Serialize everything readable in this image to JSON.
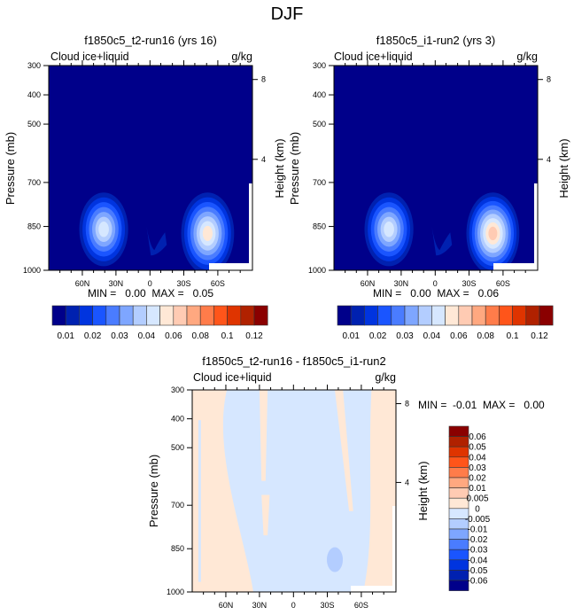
{
  "main_title": "DJF",
  "colormap": [
    "#00008a",
    "#0021b0",
    "#0034df",
    "#1a55ff",
    "#4a7cff",
    "#7ea6ff",
    "#b3cdff",
    "#d6e7ff",
    "#ffe8d6",
    "#ffcbb3",
    "#ffa880",
    "#ff7c4a",
    "#ff551a",
    "#df3400",
    "#b02100",
    "#8a0000"
  ],
  "chart_data": [
    {
      "type": "heatmap",
      "title": "f1850c5_t2-run16 (yrs 16)",
      "left_label": "Cloud ice+liquid",
      "right_label": "g/kg",
      "ylabel": "Pressure (mb)",
      "ylabel_right": "Height (km)",
      "xticks": [
        "60N",
        "30N",
        "0",
        "30S",
        "60S"
      ],
      "yticks": [
        "300",
        "400",
        "500",
        "700",
        "850",
        "1000"
      ],
      "yticks_right": [
        "8",
        "4"
      ],
      "ylim": [
        1000,
        300
      ],
      "stats": "MIN =   0.00  MAX =   0.05",
      "min": 0.0,
      "max": 0.05,
      "colorbar_labels": [
        "0.01",
        "0.02",
        "0.03",
        "0.04",
        "0.06",
        "0.08",
        "0.1",
        "0.12"
      ],
      "colorbar_orientation": "horizontal",
      "features": [
        {
          "name": "NH max near 40N at 850mb",
          "peak_value": 0.04
        },
        {
          "name": "SH max near 45S at 850mb",
          "peak_value": 0.05
        }
      ]
    },
    {
      "type": "heatmap",
      "title": "f1850c5_i1-run2 (yrs 3)",
      "left_label": "Cloud ice+liquid",
      "right_label": "g/kg",
      "ylabel": "Pressure (mb)",
      "ylabel_right": "Height (km)",
      "xticks": [
        "60N",
        "30N",
        "0",
        "30S",
        "60S"
      ],
      "yticks": [
        "300",
        "400",
        "500",
        "700",
        "850",
        "1000"
      ],
      "yticks_right": [
        "8",
        "4"
      ],
      "ylim": [
        1000,
        300
      ],
      "stats": "MIN =   0.00  MAX =   0.06",
      "min": 0.0,
      "max": 0.06,
      "colorbar_labels": [
        "0.01",
        "0.02",
        "0.03",
        "0.04",
        "0.06",
        "0.08",
        "0.1",
        "0.12"
      ],
      "colorbar_orientation": "horizontal",
      "features": [
        {
          "name": "NH max near 40N at 850mb",
          "peak_value": 0.04
        },
        {
          "name": "SH max near 45S at 850mb",
          "peak_value": 0.06
        }
      ]
    },
    {
      "type": "heatmap",
      "title": "f1850c5_t2-run16 - f1850c5_i1-run2",
      "left_label": "Cloud ice+liquid",
      "right_label": "g/kg",
      "ylabel": "Pressure (mb)",
      "ylabel_right": "Height (km)",
      "xticks": [
        "60N",
        "30N",
        "0",
        "30S",
        "60S"
      ],
      "yticks": [
        "300",
        "400",
        "500",
        "700",
        "850",
        "1000"
      ],
      "yticks_right": [
        "8",
        "4"
      ],
      "ylim": [
        1000,
        300
      ],
      "stats": "MIN =  -0.01  MAX =   0.00",
      "min": -0.01,
      "max": 0.0,
      "colorbar_labels": [
        "0.06",
        "0.05",
        "0.04",
        "0.03",
        "0.02",
        "0.01",
        "0.005",
        "0",
        "-0.005",
        "-0.01",
        "-0.02",
        "-0.03",
        "-0.04",
        "-0.05",
        "-0.06"
      ],
      "colorbar_orientation": "vertical"
    }
  ]
}
